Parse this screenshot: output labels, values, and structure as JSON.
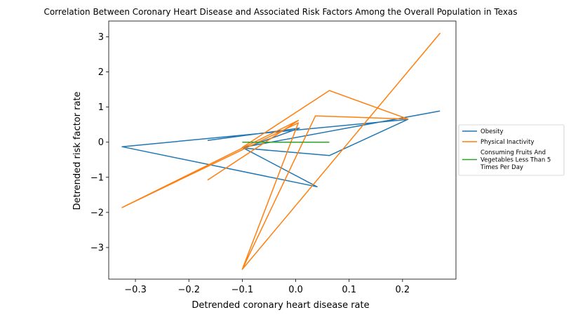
{
  "chart_data": {
    "type": "line",
    "title": "Correlation Between Coronary Heart Disease and Associated Risk Factors Among the Overall Population in Texas",
    "xlabel": "Detrended coronary heart disease rate",
    "ylabel": "Detrended risk factor rate",
    "xlim": [
      -0.35,
      0.3
    ],
    "ylim": [
      -3.9,
      3.45
    ],
    "xticks": [
      -0.3,
      -0.2,
      -0.1,
      0.0,
      0.1,
      0.2
    ],
    "xtick_labels": [
      "−0.3",
      "−0.2",
      "−0.1",
      "0.0",
      "0.1",
      "0.2"
    ],
    "yticks": [
      -3,
      -2,
      -1,
      0,
      1,
      2,
      3
    ],
    "ytick_labels": [
      "−3",
      "−2",
      "−1",
      "0",
      "1",
      "2",
      "3"
    ],
    "grid": false,
    "legend_position": "center-right-outside",
    "series": [
      {
        "name": "Obesity",
        "color": "#1f77b4",
        "points": [
          [
            -0.165,
            0.05
          ],
          [
            0.007,
            0.4
          ],
          [
            -0.097,
            -0.17
          ],
          [
            0.063,
            -0.38
          ],
          [
            0.21,
            0.65
          ],
          [
            -0.325,
            -0.13
          ],
          [
            0.04,
            -1.27
          ],
          [
            -0.1,
            -0.15
          ],
          [
            0.27,
            0.89
          ]
        ]
      },
      {
        "name": "Physical Inactivity",
        "color": "#ff7f0e",
        "points": [
          [
            -0.165,
            -1.08
          ],
          [
            0.005,
            0.62
          ],
          [
            -0.325,
            -1.86
          ],
          [
            0.005,
            0.55
          ],
          [
            -0.1,
            -3.62
          ],
          [
            0.27,
            3.1
          ],
          [
            -0.1,
            -3.62
          ],
          [
            0.037,
            0.75
          ],
          [
            0.21,
            0.66
          ],
          [
            0.063,
            1.47
          ],
          [
            -0.1,
            -0.15
          ]
        ]
      },
      {
        "name": "Consuming Fruits And Vegetables Less Than 5 Times Per Day",
        "color": "#2ca02c",
        "points": [
          [
            -0.1,
            0.0
          ],
          [
            0.063,
            0.0
          ]
        ]
      }
    ]
  }
}
